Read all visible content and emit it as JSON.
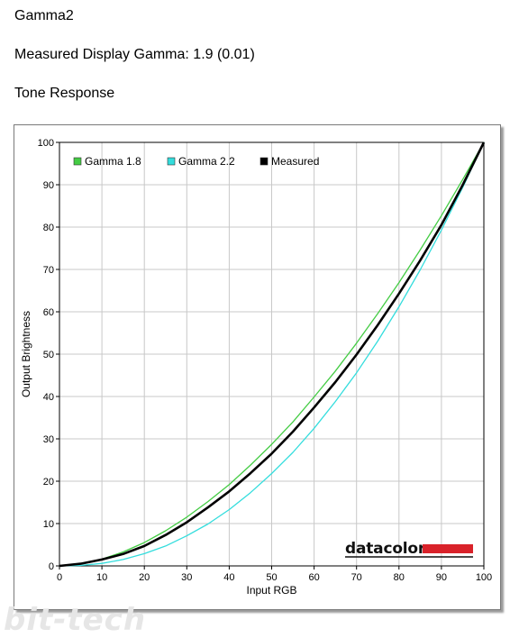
{
  "page": {
    "title": "Gamma2",
    "measured_label": "Measured Display Gamma: 1.9 (0.01)",
    "section": "Tone Response"
  },
  "watermark": "bit-tech",
  "brand": {
    "text": "datacolor",
    "bar_color": "#d9222a"
  },
  "chart_data": {
    "type": "line",
    "xlabel": "Input RGB",
    "ylabel": "Output Brightness",
    "xlim": [
      0,
      100
    ],
    "ylim": [
      0,
      100
    ],
    "xticks": [
      "0",
      "10",
      "20",
      "30",
      "40",
      "50",
      "60",
      "70",
      "80",
      "90",
      "100"
    ],
    "yticks": [
      "0",
      "10",
      "20",
      "30",
      "40",
      "50",
      "60",
      "70",
      "80",
      "90",
      "100"
    ],
    "grid": true,
    "legend_position": "top-left",
    "x": [
      0,
      5,
      10,
      15,
      20,
      25,
      30,
      35,
      40,
      45,
      50,
      55,
      60,
      65,
      70,
      75,
      80,
      85,
      90,
      95,
      100
    ],
    "series": [
      {
        "name": "Gamma 1.8",
        "color": "#44cc44",
        "values": [
          0,
          0.5,
          1.6,
          3.3,
          5.5,
          8.3,
          11.5,
          15.2,
          19.2,
          23.8,
          28.7,
          34.0,
          39.9,
          46.0,
          52.6,
          59.6,
          66.9,
          74.6,
          82.7,
          91.2,
          100
        ]
      },
      {
        "name": "Gamma 2.2",
        "color": "#33dddd",
        "values": [
          0,
          0.1,
          0.6,
          1.5,
          2.9,
          4.7,
          7.1,
          9.9,
          13.3,
          17.3,
          21.8,
          26.8,
          32.5,
          38.8,
          45.6,
          53.1,
          61.2,
          69.9,
          79.3,
          89.3,
          100
        ]
      },
      {
        "name": "Measured",
        "color": "#000000",
        "values": [
          0,
          0.5,
          1.5,
          2.8,
          4.7,
          7.3,
          10.3,
          13.8,
          17.6,
          21.9,
          26.5,
          31.7,
          37.4,
          43.4,
          49.9,
          56.9,
          64.3,
          72.1,
          80.5,
          89.9,
          100
        ]
      }
    ]
  }
}
